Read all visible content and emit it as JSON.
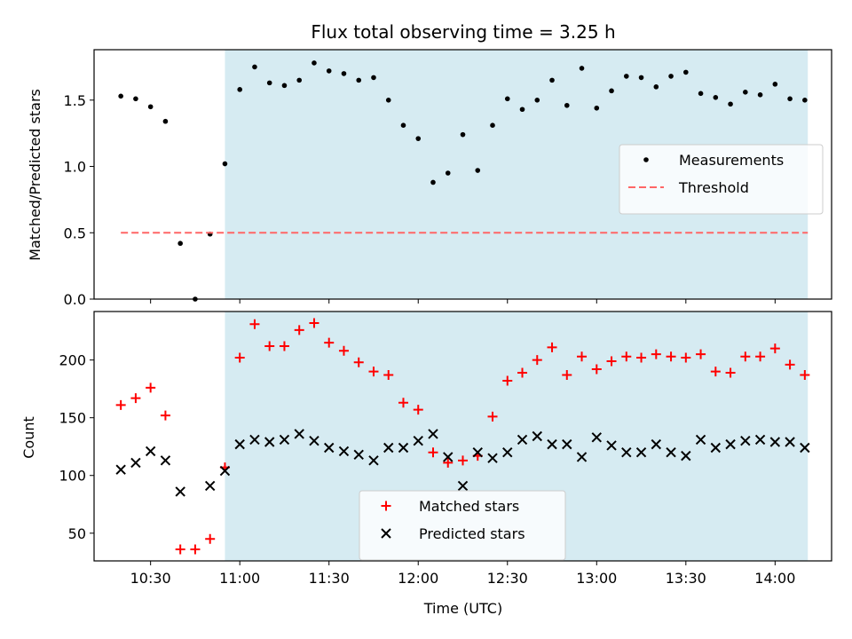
{
  "chart_data": {
    "type": "scatter",
    "title": "Flux total observing time = 3.25 h",
    "xlabel": "Time (UTC)",
    "x_tick_labels": [
      "10:30",
      "11:00",
      "11:30",
      "12:00",
      "12:30",
      "13:00",
      "13:30",
      "14:00"
    ],
    "x_ticks": [
      "10:30",
      "11:00",
      "11:30",
      "12:00",
      "12:30",
      "13:00",
      "13:30",
      "14:00"
    ],
    "xlim": [
      "10:11",
      "14:19"
    ],
    "shaded_interval": {
      "start": "10:55",
      "end": "14:11",
      "color": "#add8e6"
    },
    "panels": [
      {
        "ylabel": "Matched/Predicted stars",
        "ylim": [
          0,
          1.88
        ],
        "y_ticks": [
          0.0,
          0.5,
          1.0,
          1.5
        ],
        "y_tick_labels": [
          "0.0",
          "0.5",
          "1.0",
          "1.5"
        ],
        "legend_position": "center-right",
        "series": [
          {
            "name": "Measurements",
            "marker": "dot",
            "color": "#000000",
            "x": [
              "10:20",
              "10:25",
              "10:30",
              "10:35",
              "10:40",
              "10:45",
              "10:50",
              "10:55",
              "11:00",
              "11:05",
              "11:10",
              "11:15",
              "11:20",
              "11:25",
              "11:30",
              "11:35",
              "11:40",
              "11:45",
              "11:50",
              "11:55",
              "12:00",
              "12:05",
              "12:10",
              "12:15",
              "12:20",
              "12:25",
              "12:30",
              "12:35",
              "12:40",
              "12:45",
              "12:50",
              "12:55",
              "13:00",
              "13:05",
              "13:10",
              "13:15",
              "13:20",
              "13:25",
              "13:30",
              "13:35",
              "13:40",
              "13:45",
              "13:50",
              "13:55",
              "14:00",
              "14:05",
              "14:10"
            ],
            "y": [
              1.53,
              1.51,
              1.45,
              1.34,
              0.42,
              0.0,
              0.49,
              1.02,
              1.58,
              1.75,
              1.63,
              1.61,
              1.65,
              1.78,
              1.72,
              1.7,
              1.65,
              1.67,
              1.5,
              1.31,
              1.21,
              0.88,
              0.95,
              1.24,
              0.97,
              1.31,
              1.51,
              1.43,
              1.5,
              1.65,
              1.46,
              1.74,
              1.44,
              1.57,
              1.68,
              1.67,
              1.6,
              1.68,
              1.71,
              1.55,
              1.52,
              1.47,
              1.56,
              1.54,
              1.62,
              1.51,
              1.5
            ]
          },
          {
            "name": "Threshold",
            "marker": "dashed-line",
            "color": "#ff6666",
            "x": [
              "10:20",
              "14:11"
            ],
            "y": [
              0.5,
              0.5
            ]
          }
        ]
      },
      {
        "ylabel": "Count",
        "ylim": [
          26,
          242
        ],
        "y_ticks": [
          50,
          100,
          150,
          200
        ],
        "y_tick_labels": [
          "50",
          "100",
          "150",
          "200"
        ],
        "legend_position": "lower-center",
        "series": [
          {
            "name": "Matched stars",
            "marker": "plus",
            "color": "#ff0000",
            "x": [
              "10:20",
              "10:25",
              "10:30",
              "10:35",
              "10:40",
              "10:45",
              "10:50",
              "10:55",
              "11:00",
              "11:05",
              "11:10",
              "11:15",
              "11:20",
              "11:25",
              "11:30",
              "11:35",
              "11:40",
              "11:45",
              "11:50",
              "11:55",
              "12:00",
              "12:05",
              "12:10",
              "12:15",
              "12:20",
              "12:25",
              "12:30",
              "12:35",
              "12:40",
              "12:45",
              "12:50",
              "12:55",
              "13:00",
              "13:05",
              "13:10",
              "13:15",
              "13:20",
              "13:25",
              "13:30",
              "13:35",
              "13:40",
              "13:45",
              "13:50",
              "13:55",
              "14:00",
              "14:05",
              "14:10"
            ],
            "y": [
              161,
              167,
              176,
              152,
              36,
              36,
              45,
              107,
              202,
              231,
              212,
              212,
              226,
              232,
              215,
              208,
              198,
              190,
              187,
              163,
              157,
              120,
              111,
              113,
              117,
              151,
              182,
              189,
              200,
              211,
              187,
              203,
              192,
              199,
              203,
              202,
              205,
              203,
              202,
              205,
              190,
              189,
              203,
              203,
              210,
              196,
              187
            ]
          },
          {
            "name": "Predicted stars",
            "marker": "x",
            "color": "#000000",
            "x": [
              "10:20",
              "10:25",
              "10:30",
              "10:35",
              "10:40",
              "10:45",
              "10:50",
              "10:55",
              "11:00",
              "11:05",
              "11:10",
              "11:15",
              "11:20",
              "11:25",
              "11:30",
              "11:35",
              "11:40",
              "11:45",
              "11:50",
              "11:55",
              "12:00",
              "12:05",
              "12:10",
              "12:15",
              "12:20",
              "12:25",
              "12:30",
              "12:35",
              "12:40",
              "12:45",
              "12:50",
              "12:55",
              "13:00",
              "13:05",
              "13:10",
              "13:15",
              "13:20",
              "13:25",
              "13:30",
              "13:35",
              "13:40",
              "13:45",
              "13:50",
              "13:55",
              "14:00",
              "14:05",
              "14:10"
            ],
            "y": [
              105,
              111,
              121,
              113,
              86,
              null,
              91,
              104,
              127,
              131,
              129,
              131,
              136,
              130,
              124,
              121,
              118,
              113,
              124,
              124,
              130,
              136,
              116,
              91,
              120,
              115,
              120,
              131,
              134,
              127,
              127,
              116,
              133,
              126,
              120,
              120,
              127,
              120,
              117,
              131,
              124,
              127,
              130,
              131,
              129,
              129,
              124
            ]
          }
        ]
      }
    ]
  }
}
